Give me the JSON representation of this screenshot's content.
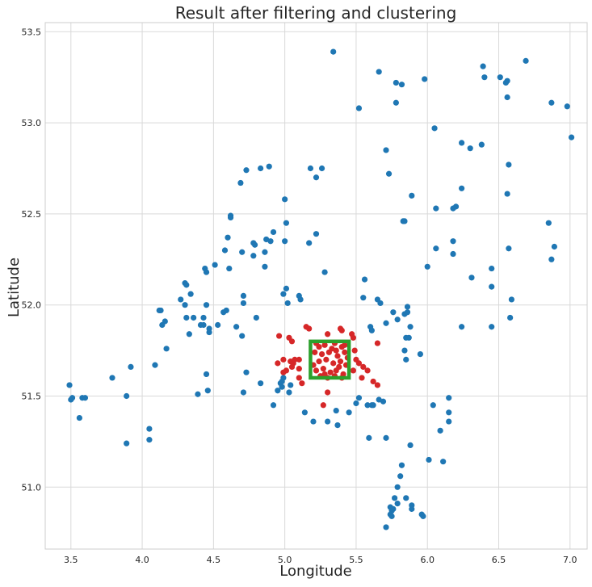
{
  "chart_data": {
    "type": "scatter",
    "title": "Result after filtering and clustering",
    "xlabel": "Longitude",
    "ylabel": "Latitude",
    "xlim": [
      3.32,
      7.12
    ],
    "ylim": [
      50.66,
      53.55
    ],
    "xticks": [
      "3.5",
      "4.0",
      "4.5",
      "5.0",
      "5.5",
      "6.0",
      "6.5",
      "7.0"
    ],
    "yticks": [
      "51.0",
      "51.5",
      "52.0",
      "52.5",
      "53.0",
      "53.5"
    ],
    "grid": true,
    "colors": {
      "outside": "#1f77b4",
      "inside": "#d62728",
      "box": "#2ca02c",
      "grid": "#d9d9d9",
      "frame": "#cccccc",
      "text": "#262626"
    },
    "bounding_box": {
      "x_min": 5.18,
      "x_max": 5.45,
      "y_min": 51.6,
      "y_max": 51.8
    },
    "series": [
      {
        "values": [
          [
            5.34,
            53.39
          ],
          [
            5.66,
            53.28
          ],
          [
            5.98,
            53.24
          ],
          [
            5.78,
            53.22
          ],
          [
            5.82,
            53.21
          ],
          [
            5.52,
            53.08
          ],
          [
            5.78,
            53.11
          ],
          [
            6.39,
            53.31
          ],
          [
            6.4,
            53.25
          ],
          [
            6.51,
            53.25
          ],
          [
            6.55,
            53.22
          ],
          [
            6.56,
            53.23
          ],
          [
            6.56,
            53.14
          ],
          [
            6.69,
            53.34
          ],
          [
            6.87,
            53.11
          ],
          [
            6.98,
            53.09
          ],
          [
            7.01,
            52.92
          ],
          [
            6.05,
            52.97
          ],
          [
            6.24,
            52.89
          ],
          [
            6.3,
            52.86
          ],
          [
            6.38,
            52.88
          ],
          [
            5.71,
            52.85
          ],
          [
            6.57,
            52.77
          ],
          [
            5.73,
            52.72
          ],
          [
            4.73,
            52.74
          ],
          [
            4.83,
            52.75
          ],
          [
            4.89,
            52.76
          ],
          [
            5.18,
            52.75
          ],
          [
            5.26,
            52.75
          ],
          [
            5.22,
            52.7
          ],
          [
            4.69,
            52.67
          ],
          [
            5.89,
            52.6
          ],
          [
            6.24,
            52.64
          ],
          [
            6.56,
            52.61
          ],
          [
            5.0,
            52.58
          ],
          [
            6.06,
            52.53
          ],
          [
            6.18,
            52.53
          ],
          [
            6.2,
            52.54
          ],
          [
            6.85,
            52.45
          ],
          [
            4.62,
            52.49
          ],
          [
            4.62,
            52.48
          ],
          [
            5.01,
            52.45
          ],
          [
            5.83,
            52.46
          ],
          [
            5.84,
            52.46
          ],
          [
            4.92,
            52.4
          ],
          [
            5.22,
            52.39
          ],
          [
            4.6,
            52.37
          ],
          [
            4.87,
            52.36
          ],
          [
            4.9,
            52.35
          ],
          [
            4.78,
            52.34
          ],
          [
            4.79,
            52.33
          ],
          [
            5.0,
            52.35
          ],
          [
            5.17,
            52.34
          ],
          [
            6.18,
            52.35
          ],
          [
            6.06,
            52.31
          ],
          [
            6.57,
            52.31
          ],
          [
            6.89,
            52.32
          ],
          [
            4.58,
            52.3
          ],
          [
            4.7,
            52.29
          ],
          [
            4.86,
            52.29
          ],
          [
            4.78,
            52.27
          ],
          [
            6.18,
            52.28
          ],
          [
            6.87,
            52.25
          ],
          [
            4.51,
            52.22
          ],
          [
            4.61,
            52.2
          ],
          [
            4.44,
            52.2
          ],
          [
            4.45,
            52.18
          ],
          [
            4.86,
            52.21
          ],
          [
            6.0,
            52.21
          ],
          [
            6.45,
            52.2
          ],
          [
            5.28,
            52.18
          ],
          [
            5.56,
            52.14
          ],
          [
            6.31,
            52.15
          ],
          [
            4.3,
            52.12
          ],
          [
            4.31,
            52.11
          ],
          [
            4.34,
            52.06
          ],
          [
            4.27,
            52.03
          ],
          [
            5.01,
            52.09
          ],
          [
            4.99,
            52.06
          ],
          [
            4.71,
            52.05
          ],
          [
            5.1,
            52.05
          ],
          [
            5.11,
            52.03
          ],
          [
            5.02,
            52.01
          ],
          [
            5.55,
            52.04
          ],
          [
            5.65,
            52.03
          ],
          [
            5.67,
            52.01
          ],
          [
            6.45,
            52.1
          ],
          [
            6.59,
            52.03
          ],
          [
            4.45,
            52.0
          ],
          [
            4.3,
            52.0
          ],
          [
            4.71,
            52.01
          ],
          [
            4.59,
            51.97
          ],
          [
            4.57,
            51.96
          ],
          [
            4.13,
            51.97
          ],
          [
            4.12,
            51.97
          ],
          [
            4.31,
            51.93
          ],
          [
            4.36,
            51.93
          ],
          [
            4.43,
            51.93
          ],
          [
            4.8,
            51.93
          ],
          [
            5.76,
            51.96
          ],
          [
            5.79,
            51.92
          ],
          [
            5.84,
            51.95
          ],
          [
            5.86,
            51.99
          ],
          [
            5.86,
            51.96
          ],
          [
            6.58,
            51.93
          ],
          [
            4.16,
            51.91
          ],
          [
            4.14,
            51.89
          ],
          [
            4.41,
            51.89
          ],
          [
            4.43,
            51.89
          ],
          [
            4.53,
            51.89
          ],
          [
            4.66,
            51.88
          ],
          [
            4.47,
            51.87
          ],
          [
            4.47,
            51.85
          ],
          [
            4.33,
            51.84
          ],
          [
            4.7,
            51.83
          ],
          [
            5.6,
            51.88
          ],
          [
            5.61,
            51.86
          ],
          [
            5.71,
            51.9
          ],
          [
            5.88,
            51.88
          ],
          [
            6.24,
            51.88
          ],
          [
            6.45,
            51.88
          ],
          [
            5.85,
            51.82
          ],
          [
            5.87,
            51.82
          ],
          [
            4.17,
            51.76
          ],
          [
            5.84,
            51.75
          ],
          [
            5.85,
            51.7
          ],
          [
            5.95,
            51.73
          ],
          [
            3.92,
            51.66
          ],
          [
            4.09,
            51.67
          ],
          [
            4.73,
            51.63
          ],
          [
            3.49,
            51.56
          ],
          [
            3.5,
            51.48
          ],
          [
            3.51,
            51.49
          ],
          [
            3.58,
            51.49
          ],
          [
            3.6,
            51.49
          ],
          [
            3.79,
            51.6
          ],
          [
            3.89,
            51.5
          ],
          [
            4.45,
            51.62
          ],
          [
            4.83,
            51.57
          ],
          [
            4.97,
            51.57
          ],
          [
            4.98,
            51.58
          ],
          [
            4.99,
            51.6
          ],
          [
            4.98,
            51.55
          ],
          [
            5.04,
            51.56
          ],
          [
            5.03,
            51.52
          ],
          [
            4.95,
            51.53
          ],
          [
            4.46,
            51.53
          ],
          [
            4.39,
            51.51
          ],
          [
            4.71,
            51.52
          ],
          [
            4.92,
            51.45
          ],
          [
            5.52,
            51.49
          ],
          [
            5.5,
            51.46
          ],
          [
            5.58,
            51.45
          ],
          [
            5.61,
            51.45
          ],
          [
            5.62,
            51.45
          ],
          [
            5.66,
            51.48
          ],
          [
            5.69,
            51.47
          ],
          [
            6.04,
            51.45
          ],
          [
            6.15,
            51.49
          ],
          [
            6.15,
            51.41
          ],
          [
            3.56,
            51.38
          ],
          [
            5.14,
            51.41
          ],
          [
            5.2,
            51.36
          ],
          [
            5.3,
            51.36
          ],
          [
            5.36,
            51.42
          ],
          [
            5.37,
            51.34
          ],
          [
            5.45,
            51.41
          ],
          [
            4.05,
            51.32
          ],
          [
            4.05,
            51.26
          ],
          [
            3.89,
            51.24
          ],
          [
            5.59,
            51.27
          ],
          [
            5.71,
            51.27
          ],
          [
            5.88,
            51.23
          ],
          [
            6.09,
            51.31
          ],
          [
            6.15,
            51.36
          ],
          [
            5.82,
            51.12
          ],
          [
            6.01,
            51.15
          ],
          [
            6.11,
            51.14
          ],
          [
            5.81,
            51.06
          ],
          [
            5.79,
            51.0
          ],
          [
            5.77,
            50.94
          ],
          [
            5.79,
            50.91
          ],
          [
            5.85,
            50.94
          ],
          [
            5.89,
            50.9
          ],
          [
            5.89,
            50.88
          ],
          [
            5.74,
            50.89
          ],
          [
            5.75,
            50.87
          ],
          [
            5.76,
            50.88
          ],
          [
            5.74,
            50.85
          ],
          [
            5.75,
            50.84
          ],
          [
            5.96,
            50.85
          ],
          [
            5.97,
            50.84
          ],
          [
            5.71,
            50.78
          ]
        ]
      },
      {
        "values": [
          [
            4.96,
            51.83
          ],
          [
            5.03,
            51.82
          ],
          [
            5.05,
            51.8
          ],
          [
            5.15,
            51.88
          ],
          [
            5.17,
            51.87
          ],
          [
            5.3,
            51.84
          ],
          [
            5.39,
            51.87
          ],
          [
            5.4,
            51.86
          ],
          [
            5.47,
            51.84
          ],
          [
            5.48,
            51.82
          ],
          [
            5.65,
            51.79
          ],
          [
            4.95,
            51.68
          ],
          [
            4.99,
            51.7
          ],
          [
            5.04,
            51.69
          ],
          [
            5.06,
            51.68
          ],
          [
            5.07,
            51.7
          ],
          [
            5.1,
            51.7
          ],
          [
            5.1,
            51.65
          ],
          [
            5.05,
            51.66
          ],
          [
            5.01,
            51.64
          ],
          [
            4.99,
            51.63
          ],
          [
            5.1,
            51.6
          ],
          [
            5.12,
            51.57
          ],
          [
            5.49,
            51.75
          ],
          [
            5.5,
            51.7
          ],
          [
            5.52,
            51.68
          ],
          [
            5.55,
            51.66
          ],
          [
            5.48,
            51.64
          ],
          [
            5.58,
            51.64
          ],
          [
            5.54,
            51.6
          ],
          [
            5.62,
            51.58
          ],
          [
            5.65,
            51.56
          ],
          [
            5.3,
            51.52
          ],
          [
            5.27,
            51.45
          ],
          [
            5.22,
            51.79
          ],
          [
            5.28,
            51.78
          ],
          [
            5.35,
            51.79
          ],
          [
            5.4,
            51.77
          ],
          [
            5.21,
            51.74
          ],
          [
            5.26,
            51.73
          ],
          [
            5.31,
            51.74
          ],
          [
            5.37,
            51.72
          ],
          [
            5.42,
            51.74
          ],
          [
            5.24,
            51.69
          ],
          [
            5.29,
            51.7
          ],
          [
            5.34,
            51.68
          ],
          [
            5.39,
            51.69
          ],
          [
            5.43,
            51.67
          ],
          [
            5.22,
            51.64
          ],
          [
            5.27,
            51.65
          ],
          [
            5.32,
            51.63
          ],
          [
            5.36,
            51.64
          ],
          [
            5.41,
            51.62
          ],
          [
            5.25,
            51.61
          ],
          [
            5.3,
            51.6
          ],
          [
            5.35,
            51.61
          ],
          [
            5.4,
            51.6
          ],
          [
            5.33,
            51.76
          ],
          [
            5.38,
            51.66
          ],
          [
            5.2,
            51.67
          ],
          [
            5.44,
            51.71
          ],
          [
            5.28,
            51.62
          ],
          [
            5.36,
            51.75
          ],
          [
            5.24,
            51.77
          ],
          [
            5.42,
            51.78
          ]
        ]
      }
    ]
  }
}
